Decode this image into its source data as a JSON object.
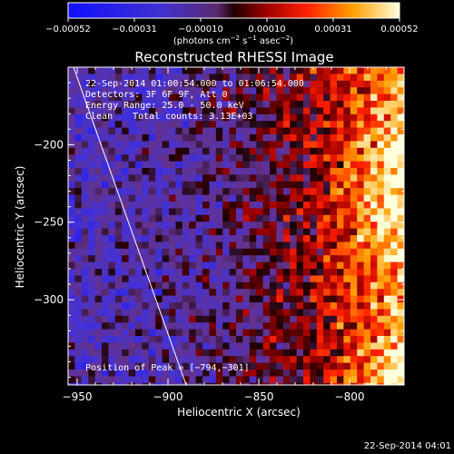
{
  "colorbar": {
    "tick_labels": [
      "−0.00052",
      "−0.00031",
      "−0.00010",
      "0.00010",
      "0.00031",
      "0.00052"
    ],
    "units_prefix": "(photons cm",
    "units_exp1": "−2",
    "units_mid": " s",
    "units_exp2": "−1",
    "units_mid2": " asec",
    "units_exp3": "−2",
    "units_suffix": ")"
  },
  "annotations": {
    "time_range": "22-Sep-2014 01:00:54.000 to 01:06:54.000",
    "detectors": "Detectors: 3F 6F 9F, Att 0",
    "energy": "Energy Range: 25.0 - 50.0 keV",
    "clean_label": "Clean",
    "total_counts": "Total counts: 3.13E+03",
    "peak": "Position of Peak = [−794,−301]"
  },
  "footer_timestamp": "22-Sep-2014 04:01",
  "chart_data": {
    "type": "heatmap",
    "title": "Reconstructed RHESSI Image",
    "xlabel": "Heliocentric X (arcsec)",
    "ylabel": "Heliocentric Y (arcsec)",
    "xlim": [
      -955,
      -770
    ],
    "ylim": [
      -355,
      -150
    ],
    "x_ticks": [
      -950,
      -900,
      -850,
      -800
    ],
    "x_tick_labels": [
      "−950",
      "−900",
      "−850",
      "−800"
    ],
    "y_ticks": [
      -300,
      -250,
      -200
    ],
    "y_tick_labels": [
      "−300",
      "−250",
      "−200"
    ],
    "value_range": [
      -0.00052,
      0.00052
    ],
    "colormap": "blue-purple-red-yellow-white",
    "peak_position": [
      -794,
      -301
    ],
    "limb_line": {
      "x": [
        -952,
        -890
      ],
      "y": [
        -150,
        -355
      ]
    }
  }
}
